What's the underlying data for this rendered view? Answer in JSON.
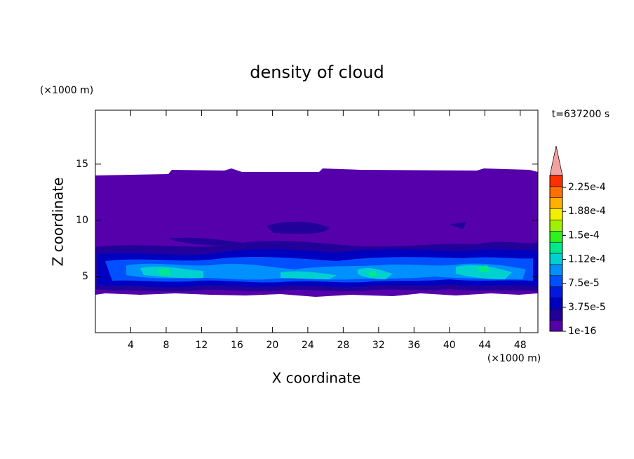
{
  "chart_data": {
    "type": "contour",
    "title": "density of cloud",
    "x_label": "X coordinate",
    "y_label": "Z coordinate",
    "x_unit": "(×1000 m)",
    "y_unit": "(×1000 m)",
    "annotation": "t=637200 s",
    "xlim": [
      0,
      50
    ],
    "ylim": [
      0,
      19.8
    ],
    "xticks": [
      4,
      8,
      12,
      16,
      20,
      24,
      28,
      32,
      36,
      40,
      44,
      48
    ],
    "yticks": [
      5,
      10,
      15
    ],
    "colorbar": {
      "lim": [
        1e-16,
        0.00024375
      ],
      "ticks": [
        1e-16,
        {
          "value": 3.75e-05,
          "label": "3.75e-5"
        },
        {
          "value": 7.5e-05,
          "label": "7.5e-5"
        },
        {
          "value": 0.0001125,
          "label": "1.12e-4"
        },
        {
          "value": 0.00015,
          "label": "1.5e-4"
        },
        {
          "value": 0.0001875,
          "label": "1.88e-4"
        },
        {
          "value": 0.000225,
          "label": "2.25e-4"
        }
      ],
      "colors": [
        "#5500aa",
        "#22009a",
        "#0000c0",
        "#0018e0",
        "#0050ff",
        "#0090ff",
        "#00d0d0",
        "#00e88c",
        "#30f020",
        "#a0f000",
        "#f0f000",
        "#ffb000",
        "#ff7000",
        "#ff3000"
      ],
      "extend_color": "#f4a0a0"
    }
  }
}
